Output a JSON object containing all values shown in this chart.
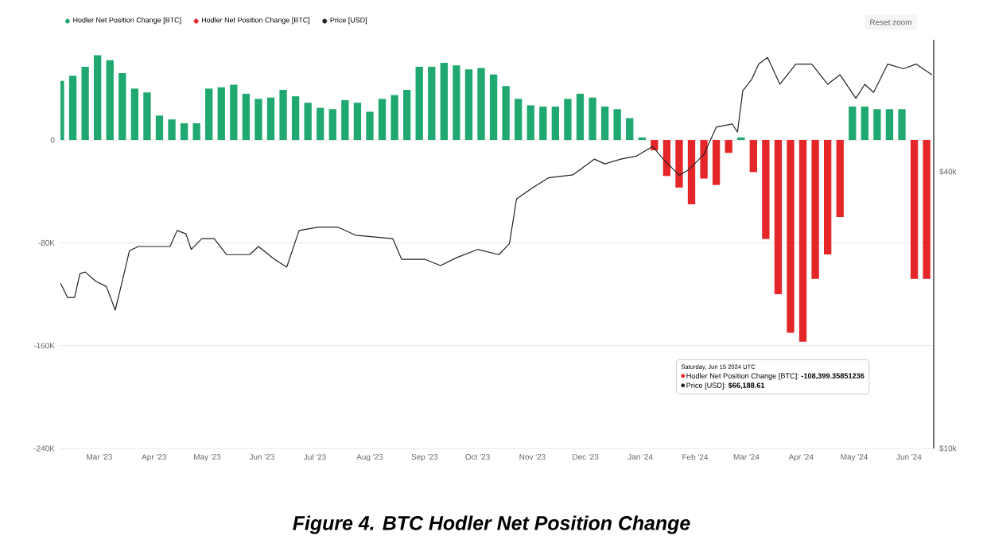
{
  "chart_data": {
    "type": "bar",
    "title": "Figure 4. BTC Hodler Net Position Change",
    "x": [
      "2023-02-07",
      "2023-02-14",
      "2023-02-21",
      "2023-02-28",
      "2023-03-07",
      "2023-03-14",
      "2023-03-21",
      "2023-03-28",
      "2023-04-04",
      "2023-04-11",
      "2023-04-18",
      "2023-04-25",
      "2023-05-02",
      "2023-05-09",
      "2023-05-16",
      "2023-05-23",
      "2023-05-30",
      "2023-06-06",
      "2023-06-13",
      "2023-06-20",
      "2023-06-27",
      "2023-07-04",
      "2023-07-11",
      "2023-07-18",
      "2023-07-25",
      "2023-08-01",
      "2023-08-08",
      "2023-08-15",
      "2023-08-22",
      "2023-08-29",
      "2023-09-05",
      "2023-09-12",
      "2023-09-19",
      "2023-09-26",
      "2023-10-03",
      "2023-10-10",
      "2023-10-17",
      "2023-10-24",
      "2023-10-31",
      "2023-11-07",
      "2023-11-14",
      "2023-11-21",
      "2023-11-28",
      "2023-12-05",
      "2023-12-12",
      "2023-12-19",
      "2023-12-26",
      "2024-01-02",
      "2024-01-09",
      "2024-01-16",
      "2024-01-23",
      "2024-01-30",
      "2024-02-06",
      "2024-02-13",
      "2024-02-20",
      "2024-02-27",
      "2024-03-05",
      "2024-03-12",
      "2024-03-19",
      "2024-03-26",
      "2024-04-02",
      "2024-04-09",
      "2024-04-16",
      "2024-04-23",
      "2024-04-30",
      "2024-05-07",
      "2024-05-14",
      "2024-05-21",
      "2024-05-28",
      "2024-06-04",
      "2024-06-11"
    ],
    "series": [
      {
        "name": "Hodler Net Position Change [BTC]",
        "color": "#1fa971",
        "values": [
          46000,
          50000,
          57000,
          66000,
          62000,
          52000,
          40000,
          37000,
          19000,
          16000,
          13000,
          13000,
          40000,
          41000,
          43000,
          36000,
          32000,
          33000,
          39000,
          34000,
          29000,
          25000,
          24000,
          31000,
          29000,
          22000,
          32000,
          35000,
          39000,
          57000,
          57000,
          60000,
          58000,
          55000,
          56000,
          51000,
          42000,
          32000,
          27000,
          26000,
          26000,
          32000,
          36000,
          33000,
          26000,
          24000,
          17000,
          2000,
          null,
          null,
          null,
          null,
          null,
          null,
          null,
          2000,
          null,
          null,
          null,
          null,
          null,
          null,
          null,
          null,
          26000,
          26000,
          24000,
          24000,
          24000,
          null,
          null
        ]
      },
      {
        "name": "Hodler Net Position Change [BTC]",
        "color": "#e52629",
        "values": [
          null,
          null,
          null,
          null,
          null,
          null,
          null,
          null,
          null,
          null,
          null,
          null,
          null,
          null,
          null,
          null,
          null,
          null,
          null,
          null,
          null,
          null,
          null,
          null,
          null,
          null,
          null,
          null,
          null,
          null,
          null,
          null,
          null,
          null,
          null,
          null,
          null,
          null,
          null,
          null,
          null,
          null,
          null,
          null,
          null,
          null,
          null,
          null,
          -8000,
          -28000,
          -37000,
          -50000,
          -30000,
          -35000,
          -10000,
          null,
          -25000,
          -77000,
          -120000,
          -150000,
          -157000,
          -108000,
          -89000,
          -60000,
          null,
          null,
          null,
          null,
          null,
          -108000,
          -108000
        ]
      },
      {
        "name": "Price [USD]",
        "color": "#222222",
        "type": "line",
        "axis": "y2",
        "x": [
          "2023-02-07",
          "2023-02-11",
          "2023-02-15",
          "2023-02-18",
          "2023-02-21",
          "2023-02-27",
          "2023-03-05",
          "2023-03-10",
          "2023-03-15",
          "2023-03-18",
          "2023-03-23",
          "2023-04-01",
          "2023-04-10",
          "2023-04-14",
          "2023-04-19",
          "2023-04-22",
          "2023-04-28",
          "2023-05-05",
          "2023-05-12",
          "2023-05-25",
          "2023-05-30",
          "2023-06-08",
          "2023-06-15",
          "2023-06-22",
          "2023-07-03",
          "2023-07-14",
          "2023-07-24",
          "2023-08-14",
          "2023-08-19",
          "2023-09-01",
          "2023-09-10",
          "2023-09-19",
          "2023-10-01",
          "2023-10-13",
          "2023-10-19",
          "2023-10-23",
          "2023-11-01",
          "2023-11-10",
          "2023-11-24",
          "2023-12-06",
          "2023-12-12",
          "2023-12-21",
          "2023-12-30",
          "2024-01-08",
          "2024-01-14",
          "2024-01-23",
          "2024-01-28",
          "2024-02-06",
          "2024-02-13",
          "2024-02-22",
          "2024-02-25",
          "2024-02-28",
          "2024-03-04",
          "2024-03-08",
          "2024-03-13",
          "2024-03-20",
          "2024-03-29",
          "2024-04-07",
          "2024-04-16",
          "2024-04-23",
          "2024-05-02",
          "2024-05-07",
          "2024-05-12",
          "2024-05-20",
          "2024-05-29",
          "2024-06-05",
          "2024-06-14"
        ],
        "values": [
          22900,
          21300,
          21300,
          24000,
          24200,
          23100,
          22500,
          20000,
          24000,
          26900,
          27500,
          27500,
          27500,
          29800,
          29300,
          27100,
          28600,
          28600,
          26400,
          26400,
          27500,
          25800,
          24800,
          29800,
          30300,
          30300,
          29100,
          28600,
          25800,
          25800,
          25000,
          26000,
          27100,
          26400,
          27900,
          34900,
          36900,
          38800,
          39400,
          42600,
          41600,
          42600,
          43300,
          45400,
          42600,
          39300,
          40300,
          43600,
          50000,
          50800,
          48800,
          60000,
          63500,
          68600,
          70900,
          62000,
          68600,
          68600,
          62000,
          65000,
          57800,
          62000,
          59500,
          68600,
          67000,
          68600,
          65000
        ]
      }
    ],
    "xlim": [
      "2023-02-07",
      "2024-06-15"
    ],
    "xticks": [
      {
        "value": "2023-03-01",
        "label": "Mar '23"
      },
      {
        "value": "2023-04-01",
        "label": "Apr '23"
      },
      {
        "value": "2023-05-01",
        "label": "May '23"
      },
      {
        "value": "2023-06-01",
        "label": "Jun '23"
      },
      {
        "value": "2023-07-01",
        "label": "Jul '23"
      },
      {
        "value": "2023-08-01",
        "label": "Aug '23"
      },
      {
        "value": "2023-09-01",
        "label": "Sep '23"
      },
      {
        "value": "2023-10-01",
        "label": "Oct '23"
      },
      {
        "value": "2023-11-01",
        "label": "Nov '23"
      },
      {
        "value": "2023-12-01",
        "label": "Dec '23"
      },
      {
        "value": "2024-01-01",
        "label": "Jan '24"
      },
      {
        "value": "2024-02-01",
        "label": "Feb '24"
      },
      {
        "value": "2024-03-01",
        "label": "Mar '24"
      },
      {
        "value": "2024-04-01",
        "label": "Apr '24"
      },
      {
        "value": "2024-05-01",
        "label": "May '24"
      },
      {
        "value": "2024-06-01",
        "label": "Jun '24"
      }
    ],
    "ylim": [
      -240000,
      78000
    ],
    "yticks": [
      {
        "value": 0,
        "label": "0"
      },
      {
        "value": -80000,
        "label": "-80K"
      },
      {
        "value": -160000,
        "label": "-160K"
      },
      {
        "value": -240000,
        "label": "-240K"
      }
    ],
    "y2lim": [
      10000,
      77500
    ],
    "y2ticks": [
      {
        "value": 40000,
        "label": "$40k"
      },
      {
        "value": 10000,
        "label": "$10k"
      }
    ],
    "log": "y2",
    "grid": "y",
    "legend": "top left",
    "annotations": [
      "Reset zoom",
      "Saturday, Jun 15 2024 UTC",
      "Hodler Net Position Change [BTC]: **-108,399.35851236**",
      "Price [USD]: **$66,188.61**"
    ]
  }
}
